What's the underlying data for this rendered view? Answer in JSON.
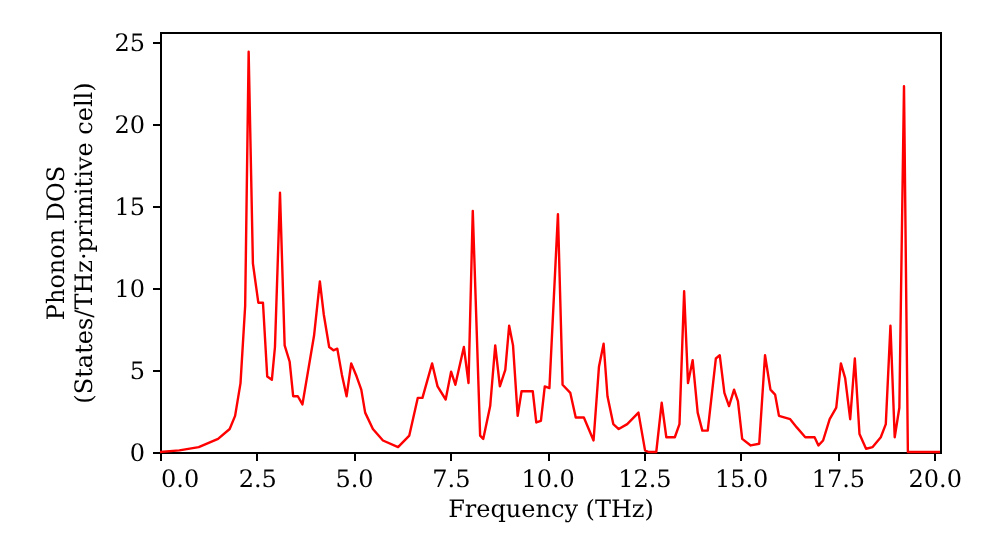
{
  "chart_data": {
    "type": "line",
    "xlabel": "Frequency (THz)",
    "ylabel": "Phonon DOS\n(States/THz·primitive cell)",
    "x": [
      0,
      0.5,
      1.0,
      1.5,
      1.8,
      1.94,
      2.08,
      2.2,
      2.29,
      2.4,
      2.54,
      2.66,
      2.77,
      2.89,
      2.97,
      3.1,
      3.22,
      3.35,
      3.44,
      3.56,
      3.68,
      3.98,
      4.13,
      4.23,
      4.37,
      4.48,
      4.58,
      4.7,
      4.82,
      4.94,
      5.08,
      5.2,
      5.3,
      5.5,
      5.76,
      6.15,
      6.44,
      6.66,
      6.78,
      7.03,
      7.17,
      7.38,
      7.52,
      7.63,
      7.85,
      7.97,
      8.08,
      8.27,
      8.35,
      8.53,
      8.66,
      8.78,
      8.92,
      9.02,
      9.12,
      9.24,
      9.34,
      9.63,
      9.72,
      9.84,
      9.94,
      10.06,
      10.28,
      10.4,
      10.6,
      10.74,
      10.95,
      11.2,
      11.34,
      11.46,
      11.56,
      11.71,
      11.85,
      12.07,
      12.36,
      12.53,
      12.62,
      12.82,
      12.96,
      13.08,
      13.3,
      13.42,
      13.54,
      13.64,
      13.76,
      13.89,
      14.01,
      14.15,
      14.36,
      14.46,
      14.58,
      14.7,
      14.83,
      14.93,
      15.04,
      15.26,
      15.48,
      15.63,
      15.77,
      15.89,
      15.99,
      16.28,
      16.45,
      16.67,
      16.91,
      17.01,
      17.13,
      17.3,
      17.47,
      17.59,
      17.7,
      17.83,
      17.95,
      18.07,
      18.24,
      18.41,
      18.62,
      18.75,
      18.87,
      18.98,
      19.1,
      19.22,
      19.32,
      20.15
    ],
    "series": [
      {
        "color": "#ff0000",
        "values": [
          0,
          0.1,
          0.3,
          0.8,
          1.4,
          2.2,
          4.2,
          8.9,
          24.4,
          11.5,
          9.1,
          9.1,
          4.6,
          4.4,
          6.4,
          15.8,
          6.5,
          5.5,
          3.4,
          3.4,
          2.9,
          7.1,
          10.4,
          8.4,
          6.4,
          6.2,
          6.3,
          4.7,
          3.4,
          5.4,
          4.6,
          3.8,
          2.4,
          1.4,
          0.7,
          0.3,
          1.0,
          3.3,
          3.3,
          5.4,
          4.0,
          3.2,
          4.9,
          4.1,
          6.4,
          4.2,
          14.7,
          1.0,
          0.8,
          2.8,
          6.5,
          4.0,
          5.0,
          7.7,
          6.5,
          2.2,
          3.7,
          3.7,
          1.8,
          1.9,
          4.0,
          3.9,
          14.5,
          4.1,
          3.6,
          2.1,
          2.1,
          0.7,
          5.2,
          6.6,
          3.4,
          1.7,
          1.4,
          1.7,
          2.4,
          0.1,
          0,
          0,
          3.0,
          0.9,
          0.9,
          1.7,
          9.8,
          4.2,
          5.6,
          2.4,
          1.3,
          1.3,
          5.7,
          5.9,
          3.6,
          2.8,
          3.8,
          3.1,
          0.8,
          0.4,
          0.5,
          5.9,
          3.8,
          3.5,
          2.2,
          2.0,
          1.5,
          0.9,
          0.9,
          0.4,
          0.7,
          2.0,
          2.7,
          5.4,
          4.5,
          2.0,
          5.7,
          1.1,
          0.2,
          0.3,
          0.9,
          1.7,
          7.7,
          0.9,
          2.7,
          22.3,
          0,
          0
        ]
      }
    ],
    "xlim": [
      0,
      20.15
    ],
    "xticks": [
      {
        "value": 0,
        "label": "0.0"
      },
      {
        "value": 2.5,
        "label": "2.5"
      },
      {
        "value": 5,
        "label": "5.0"
      },
      {
        "value": 7.5,
        "label": "7.5"
      },
      {
        "value": 10,
        "label": "10.0"
      },
      {
        "value": 12.5,
        "label": "12.5"
      },
      {
        "value": 15,
        "label": "15.0"
      },
      {
        "value": 17.5,
        "label": "17.5"
      },
      {
        "value": 20,
        "label": "20.0"
      }
    ],
    "ylim": [
      0,
      25.6
    ],
    "yticks": [
      0,
      5,
      10,
      15,
      20,
      25
    ],
    "grid": false,
    "marker": "none",
    "line_style": "solid"
  }
}
